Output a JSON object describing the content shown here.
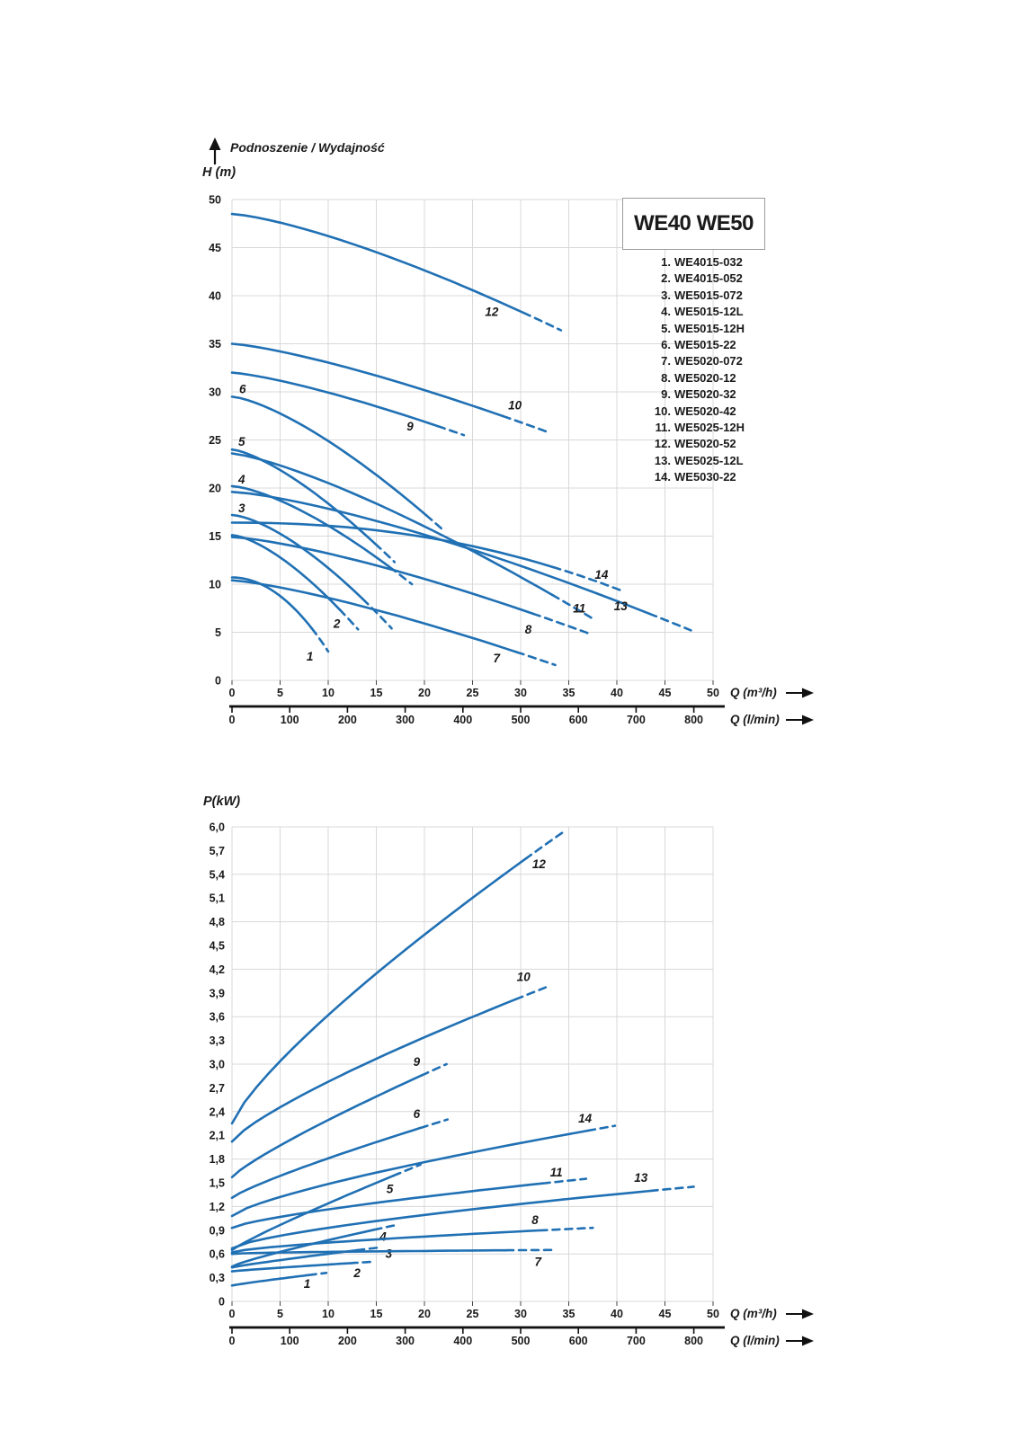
{
  "title_block": {
    "title": "Podnoszenie / Wydajność"
  },
  "legend": {
    "title": "WE40 WE50",
    "items": [
      {
        "num": "1.",
        "name": "WE4015-032"
      },
      {
        "num": "2.",
        "name": "WE4015-052"
      },
      {
        "num": "3.",
        "name": "WE5015-072"
      },
      {
        "num": "4.",
        "name": "WE5015-12L"
      },
      {
        "num": "5.",
        "name": "WE5015-12H"
      },
      {
        "num": "6.",
        "name": "WE5015-22"
      },
      {
        "num": "7.",
        "name": "WE5020-072"
      },
      {
        "num": "8.",
        "name": "WE5020-12"
      },
      {
        "num": "9.",
        "name": "WE5020-32"
      },
      {
        "num": "10.",
        "name": "WE5020-42"
      },
      {
        "num": "11.",
        "name": "WE5025-12H"
      },
      {
        "num": "12.",
        "name": "WE5020-52"
      },
      {
        "num": "13.",
        "name": "WE5025-12L"
      },
      {
        "num": "14.",
        "name": "WE5030-22"
      }
    ]
  },
  "colors": {
    "curve": "#2070b4",
    "grid": "#d8d8d8",
    "tick": "#444444",
    "bar": "#111111",
    "text": "#1a1a1a",
    "legend_border": "#9b9b9b"
  },
  "x_axis": {
    "label_m3h": "Q (m³/h)",
    "label_lmin": "Q (l/min)",
    "m3h_ticks": [
      0,
      5,
      10,
      15,
      20,
      25,
      30,
      35,
      40,
      45,
      50
    ],
    "lmin_ticks": [
      0,
      100,
      200,
      300,
      400,
      500,
      600,
      700,
      800
    ],
    "arrow_icon": "right-arrow"
  },
  "chart_data": [
    {
      "type": "line",
      "id": "head-capacity",
      "title": "Podnoszenie / Wydajność",
      "y_label": "H (m)",
      "xlabel": "Q (m³/h) / Q (l/min)",
      "ylim": [
        0,
        50
      ],
      "xlim": [
        0,
        50
      ],
      "y_grid_step": 5,
      "x_grid_step": 5,
      "y_tick_labels": [
        "0",
        "5",
        "10",
        "15",
        "20",
        "25",
        "30",
        "35",
        "40",
        "45",
        "50"
      ],
      "legend_position": "top-right-box",
      "grid": true,
      "series_note": "v0 = H at Q=0 (m), q_solid = end of solid line, (q_end, v_end) = end of dashed tail",
      "series": [
        {
          "n": 1,
          "model": "WE4015-032",
          "v0": 10.7,
          "q_solid": 8.3,
          "q_end": 10.0,
          "v_end": 3.0,
          "bow": 2.0,
          "label_at": [
            8.1,
            2.5
          ]
        },
        {
          "n": 2,
          "model": "WE4015-052",
          "v0": 15.1,
          "q_solid": 11.2,
          "q_end": 13.1,
          "v_end": 5.3,
          "bow": 1.5,
          "label_at": [
            10.9,
            5.9
          ]
        },
        {
          "n": 3,
          "model": "WE5015-072",
          "v0": 17.2,
          "q_solid": 13.6,
          "q_end": 16.6,
          "v_end": 5.4,
          "bow": 1.5,
          "label_at": [
            1.0,
            17.9
          ]
        },
        {
          "n": 4,
          "model": "WE5015-12L",
          "v0": 20.2,
          "q_solid": 16.4,
          "q_end": 18.7,
          "v_end": 10.0,
          "bow": 1.45,
          "label_at": [
            1.0,
            20.9
          ]
        },
        {
          "n": 5,
          "model": "WE5015-12H",
          "v0": 24.0,
          "q_solid": 14.9,
          "q_end": 16.9,
          "v_end": 12.3,
          "bow": 1.4,
          "label_at": [
            1.0,
            24.8
          ]
        },
        {
          "n": 6,
          "model": "WE5015-22",
          "v0": 29.5,
          "q_solid": 20.2,
          "q_end": 22.1,
          "v_end": 15.5,
          "bow": 1.4,
          "label_at": [
            1.1,
            30.3
          ]
        },
        {
          "n": 7,
          "model": "WE5020-072",
          "v0": 10.4,
          "q_solid": 29.6,
          "q_end": 33.6,
          "v_end": 1.6,
          "bow": 1.3,
          "label_at": [
            27.5,
            2.3
          ]
        },
        {
          "n": 8,
          "model": "WE5020-12",
          "v0": 14.9,
          "q_solid": 31.3,
          "q_end": 37.3,
          "v_end": 4.8,
          "bow": 1.35,
          "label_at": [
            30.8,
            5.3
          ]
        },
        {
          "n": 9,
          "model": "WE5020-32",
          "v0": 32.0,
          "q_solid": 21.4,
          "q_end": 24.1,
          "v_end": 25.5,
          "bow": 1.3,
          "label_at": [
            18.5,
            26.4
          ]
        },
        {
          "n": 10,
          "model": "WE5020-42",
          "v0": 35.0,
          "q_solid": 28.2,
          "q_end": 32.6,
          "v_end": 25.9,
          "bow": 1.3,
          "label_at": [
            29.4,
            28.6
          ]
        },
        {
          "n": 11,
          "model": "WE5025-12H",
          "v0": 23.6,
          "q_solid": 33.3,
          "q_end": 37.7,
          "v_end": 6.3,
          "bow": 1.3,
          "label_at": [
            36.1,
            7.5
          ]
        },
        {
          "n": 12,
          "model": "WE5020-52",
          "v0": 48.5,
          "q_solid": 30.3,
          "q_end": 34.2,
          "v_end": 36.4,
          "bow": 1.35,
          "label_at": [
            27.0,
            38.3
          ]
        },
        {
          "n": 13,
          "model": "WE5025-12L",
          "v0": 19.6,
          "q_solid": 43.4,
          "q_end": 47.7,
          "v_end": 5.2,
          "bow": 1.35,
          "label_at": [
            40.4,
            7.7
          ]
        },
        {
          "n": 14,
          "model": "WE5030-22",
          "v0": 16.4,
          "q_solid": 33.4,
          "q_end": 40.3,
          "v_end": 9.4,
          "bow": 2.2,
          "label_at": [
            38.4,
            11.0
          ]
        }
      ]
    },
    {
      "type": "line",
      "id": "power",
      "title": "P(kW)",
      "y_label": "P(kW)",
      "xlabel": "Q (m³/h) / Q (l/min)",
      "ylim": [
        0,
        6.0
      ],
      "xlim": [
        0,
        50
      ],
      "y_grid_step": 0.6,
      "x_grid_step": 5,
      "y_tick_labels": [
        "0",
        "0,3",
        "0,6",
        "0,9",
        "1,2",
        "1,5",
        "1,8",
        "2,1",
        "2,4",
        "2,7",
        "3,0",
        "3,3",
        "3,6",
        "3,9",
        "4,2",
        "4,5",
        "4,8",
        "5,1",
        "5,4",
        "5,7",
        "6,0"
      ],
      "grid": true,
      "series_note": "v0 = P at Q=0 (kW), q_solid = end of solid line, (q_end, v_end) = end of dashed tail",
      "series": [
        {
          "n": 1,
          "model": "WE4015-032",
          "v0": 0.2,
          "q_solid": 8.0,
          "q_end": 9.8,
          "v_end": 0.36,
          "bow": 0.9,
          "label_at": [
            7.8,
            0.22
          ]
        },
        {
          "n": 2,
          "model": "WE4015-052",
          "v0": 0.38,
          "q_solid": 12.3,
          "q_end": 14.5,
          "v_end": 0.5,
          "bow": 0.9,
          "label_at": [
            13.0,
            0.36
          ]
        },
        {
          "n": 3,
          "model": "WE5015-072",
          "v0": 0.43,
          "q_solid": 13.0,
          "q_end": 15.2,
          "v_end": 0.68,
          "bow": 0.9,
          "label_at": [
            16.3,
            0.6
          ]
        },
        {
          "n": 4,
          "model": "WE5015-12L",
          "v0": 0.44,
          "q_solid": 14.8,
          "q_end": 17.2,
          "v_end": 0.97,
          "bow": 0.85,
          "label_at": [
            15.7,
            0.82
          ]
        },
        {
          "n": 5,
          "model": "WE5015-12H",
          "v0": 0.65,
          "q_solid": 16.8,
          "q_end": 19.6,
          "v_end": 1.73,
          "bow": 0.9,
          "label_at": [
            16.4,
            1.42
          ]
        },
        {
          "n": 6,
          "model": "WE5015-22",
          "v0": 1.31,
          "q_solid": 19.6,
          "q_end": 22.4,
          "v_end": 2.3,
          "bow": 0.85,
          "label_at": [
            19.2,
            2.37
          ]
        },
        {
          "n": 7,
          "model": "WE5020-072",
          "v0": 0.6,
          "q_solid": 28.5,
          "q_end": 33.2,
          "v_end": 0.65,
          "bow": 0.55,
          "label_at": [
            31.8,
            0.5
          ]
        },
        {
          "n": 8,
          "model": "WE5020-12",
          "v0": 0.62,
          "q_solid": 32.0,
          "q_end": 37.5,
          "v_end": 0.93,
          "bow": 0.7,
          "label_at": [
            31.5,
            1.03
          ]
        },
        {
          "n": 9,
          "model": "WE5020-32",
          "v0": 1.57,
          "q_solid": 19.7,
          "q_end": 22.3,
          "v_end": 3.0,
          "bow": 0.85,
          "label_at": [
            19.2,
            3.03
          ]
        },
        {
          "n": 10,
          "model": "WE5020-42",
          "v0": 2.02,
          "q_solid": 29.5,
          "q_end": 32.6,
          "v_end": 3.97,
          "bow": 0.8,
          "label_at": [
            30.3,
            4.1
          ]
        },
        {
          "n": 11,
          "model": "WE5025-12H",
          "v0": 0.93,
          "q_solid": 32.3,
          "q_end": 36.8,
          "v_end": 1.55,
          "bow": 0.75,
          "label_at": [
            33.7,
            1.63
          ]
        },
        {
          "n": 12,
          "model": "WE5020-52",
          "v0": 2.25,
          "q_solid": 30.5,
          "q_end": 34.6,
          "v_end": 5.95,
          "bow": 0.8,
          "label_at": [
            31.9,
            5.53
          ]
        },
        {
          "n": 13,
          "model": "WE5025-12L",
          "v0": 0.67,
          "q_solid": 43.5,
          "q_end": 48.0,
          "v_end": 1.45,
          "bow": 0.7,
          "label_at": [
            42.5,
            1.56
          ]
        },
        {
          "n": 14,
          "model": "WE5030-22",
          "v0": 1.08,
          "q_solid": 37.0,
          "q_end": 39.8,
          "v_end": 2.22,
          "bow": 0.75,
          "label_at": [
            36.7,
            2.31
          ]
        }
      ]
    }
  ]
}
